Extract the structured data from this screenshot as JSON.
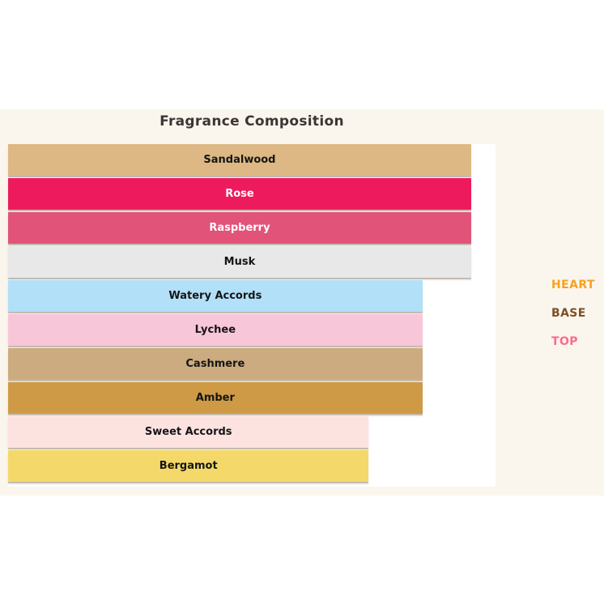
{
  "title": "Fragrance Composition",
  "colors": {
    "page_background": "#FFFFFF",
    "band_background": "#FBF6ED",
    "plot_background": "#FFFFFF",
    "title_text": "#3E3434"
  },
  "legend": {
    "items": [
      {
        "label": "HEART",
        "color": "#F6A21D"
      },
      {
        "label": "BASE",
        "color": "#7E4F26"
      },
      {
        "label": "TOP",
        "color": "#FB6A8D"
      }
    ]
  },
  "chart_data": {
    "type": "bar",
    "orientation": "horizontal",
    "title": "Fragrance Composition",
    "xlabel": "",
    "ylabel": "",
    "xlim": [
      0,
      100
    ],
    "grid": false,
    "axes_visible": false,
    "legend_position": "right",
    "legend_entries": [
      "HEART",
      "BASE",
      "TOP"
    ],
    "categories": [
      "Sandalwood",
      "Rose",
      "Raspberry",
      "Musk",
      "Watery Accords",
      "Lychee",
      "Cashmere",
      "Amber",
      "Sweet Accords",
      "Bergamot"
    ],
    "values": [
      95,
      95,
      95,
      95,
      85,
      85,
      85,
      85,
      74,
      74
    ],
    "bars": [
      {
        "label": "Sandalwood",
        "value": 95,
        "color": "#DDB884",
        "text_color": "#151515"
      },
      {
        "label": "Rose",
        "value": 95,
        "color": "#ED1B5E",
        "text_color": "#FFFFFF"
      },
      {
        "label": "Raspberry",
        "value": 95,
        "color": "#E15379",
        "text_color": "#FFFFFF"
      },
      {
        "label": "Musk",
        "value": 95,
        "color": "#E8E8E8",
        "text_color": "#151515"
      },
      {
        "label": "Watery Accords",
        "value": 85,
        "color": "#B1E0F8",
        "text_color": "#151515"
      },
      {
        "label": "Lychee",
        "value": 85,
        "color": "#F8C6D9",
        "text_color": "#151515"
      },
      {
        "label": "Cashmere",
        "value": 85,
        "color": "#CCAB80",
        "text_color": "#151515"
      },
      {
        "label": "Amber",
        "value": 85,
        "color": "#CF9A45",
        "text_color": "#151515"
      },
      {
        "label": "Sweet Accords",
        "value": 74,
        "color": "#FCE3E0",
        "text_color": "#151515"
      },
      {
        "label": "Bergamot",
        "value": 74,
        "color": "#F4D96A",
        "text_color": "#151515"
      }
    ]
  }
}
